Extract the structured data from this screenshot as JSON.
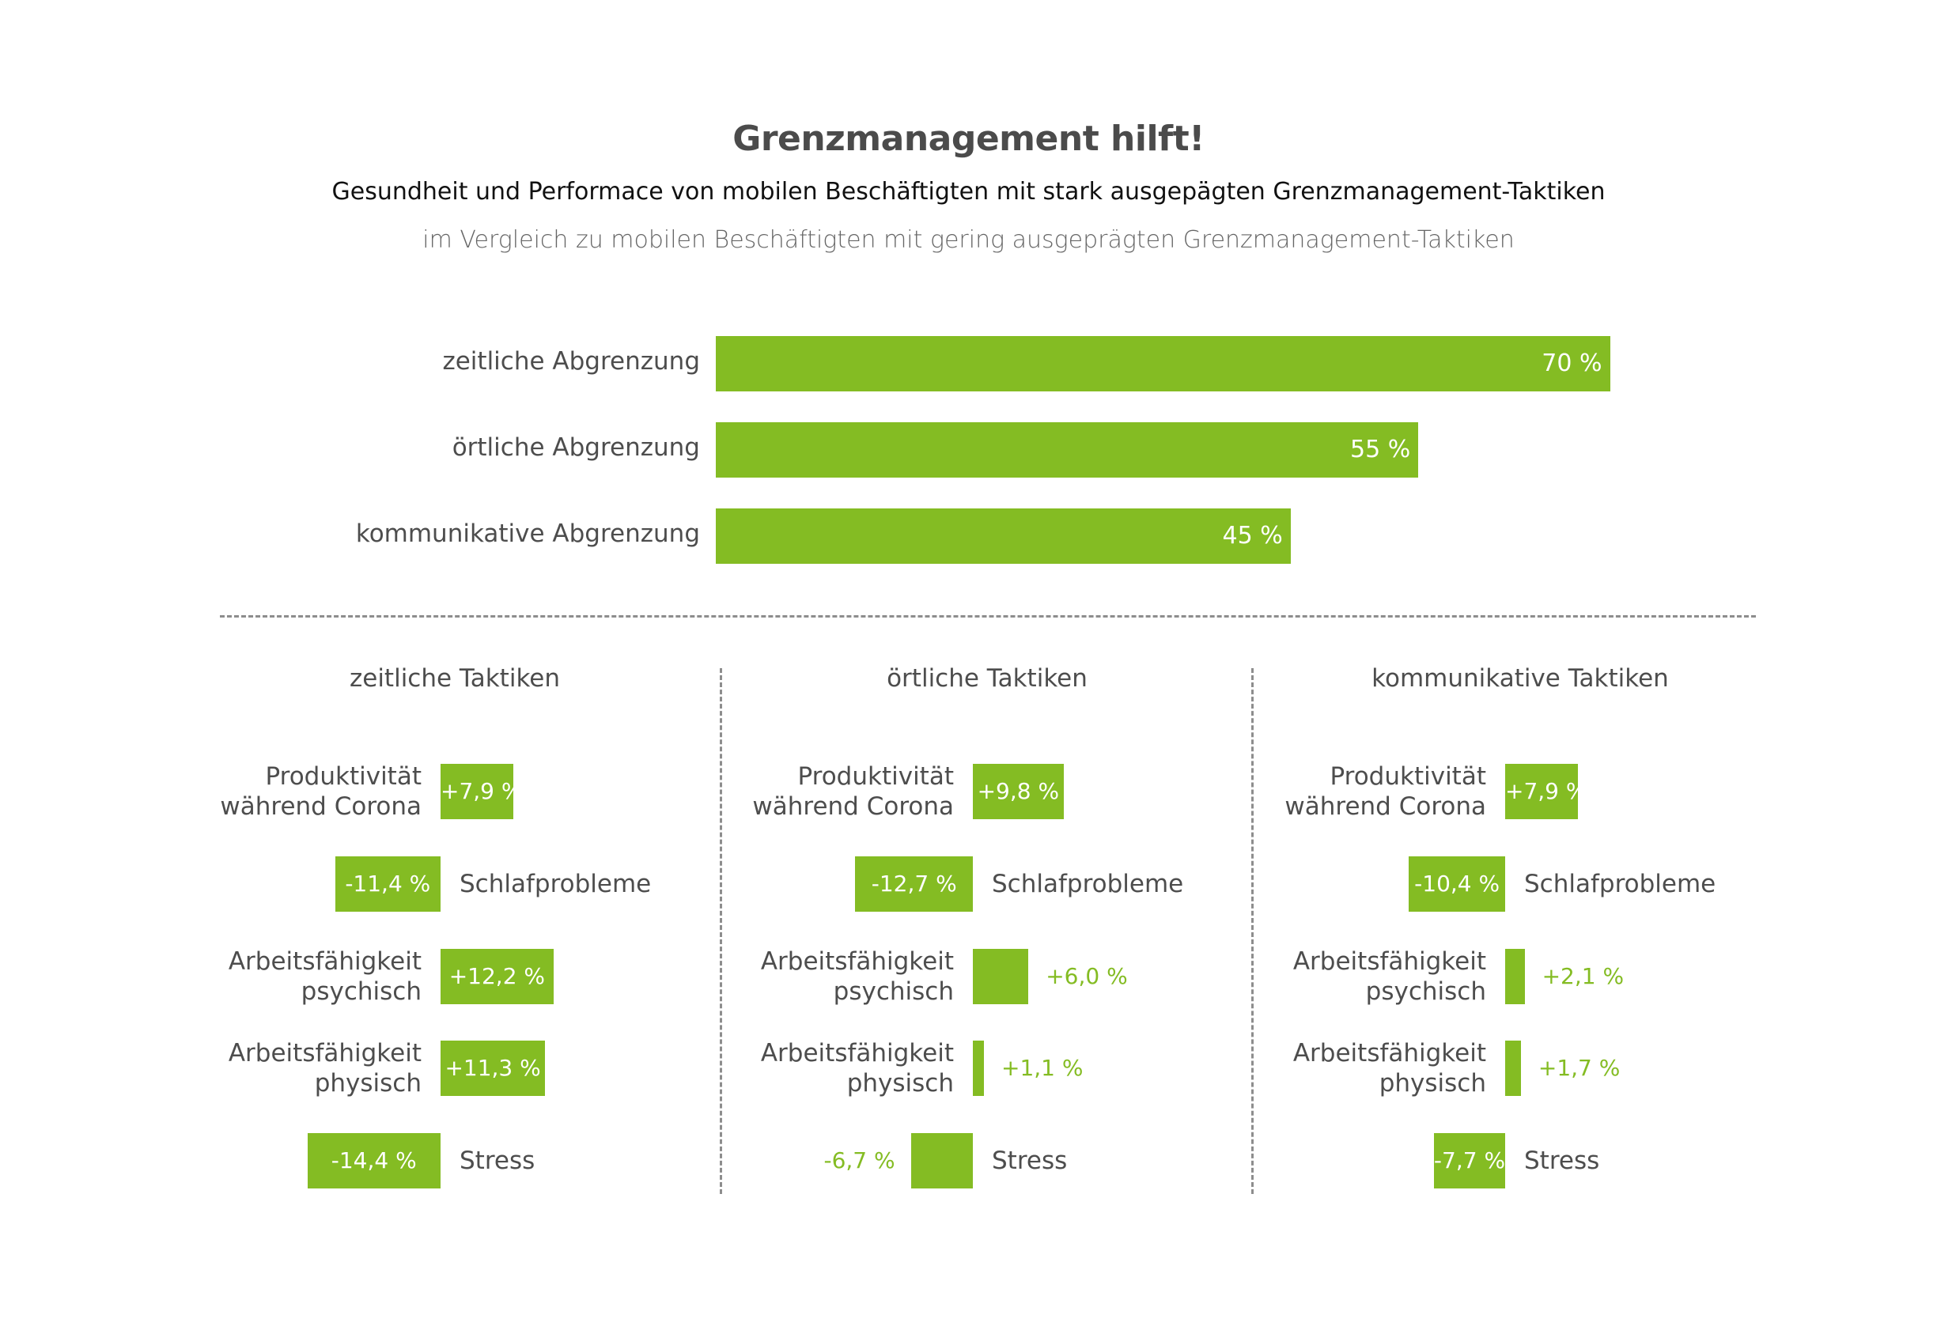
{
  "title": "Grenzmanagement hilft!",
  "subtitle": "Gesundheit und Performace von mobilen Beschäftigten mit stark ausgepägten Grenzmanagement-Taktiken",
  "note": "im Vergleich zu mobilen Beschäftigten mit gering ausgeprägten Grenzmanagement-Taktiken",
  "colors": {
    "bar": "#84bc23",
    "text": "#4d4d4d",
    "divider": "#8d8d8d"
  },
  "chart_data": [
    {
      "type": "bar",
      "orientation": "horizontal",
      "categories": [
        "zeitliche Abgrenzung",
        "örtliche Abgrenzung",
        "kommunikative Abgrenzung"
      ],
      "values": [
        70,
        55,
        45
      ],
      "value_labels": [
        "70 %",
        "55 %",
        "45 %"
      ]
    },
    {
      "type": "bar",
      "title": "zeitliche Taktiken",
      "categories": [
        "Produktivität während Corona",
        "Schlafprobleme",
        "Arbeitsfähigkeit psychisch",
        "Arbeitsfähigkeit physisch",
        "Stress"
      ],
      "category_lines": [
        [
          "Produktivität",
          "während Corona"
        ],
        [
          "Schlafprobleme"
        ],
        [
          "Arbeitsfähigkeit",
          "psychisch"
        ],
        [
          "Arbeitsfähigkeit",
          "physisch"
        ],
        [
          "Stress"
        ]
      ],
      "values": [
        7.9,
        -11.4,
        12.2,
        11.3,
        -14.4
      ],
      "value_labels": [
        "+7,9 %",
        "-11,4 %",
        "+12,2 %",
        "+11,3 %",
        "-14,4 %"
      ]
    },
    {
      "type": "bar",
      "title": "örtliche Taktiken",
      "categories": [
        "Produktivität während Corona",
        "Schlafprobleme",
        "Arbeitsfähigkeit psychisch",
        "Arbeitsfähigkeit physisch",
        "Stress"
      ],
      "category_lines": [
        [
          "Produktivität",
          "während Corona"
        ],
        [
          "Schlafprobleme"
        ],
        [
          "Arbeitsfähigkeit",
          "psychisch"
        ],
        [
          "Arbeitsfähigkeit",
          "physisch"
        ],
        [
          "Stress"
        ]
      ],
      "values": [
        9.8,
        -12.7,
        6.0,
        1.1,
        -6.7
      ],
      "value_labels": [
        "+9,8 %",
        "-12,7 %",
        "+6,0 %",
        "+1,1 %",
        "-6,7 %"
      ]
    },
    {
      "type": "bar",
      "title": "kommunikative Taktiken",
      "categories": [
        "Produktivität während Corona",
        "Schlafprobleme",
        "Arbeitsfähigkeit psychisch",
        "Arbeitsfähigkeit physisch",
        "Stress"
      ],
      "category_lines": [
        [
          "Produktivität",
          "während Corona"
        ],
        [
          "Schlafprobleme"
        ],
        [
          "Arbeitsfähigkeit",
          "psychisch"
        ],
        [
          "Arbeitsfähigkeit",
          "physisch"
        ],
        [
          "Stress"
        ]
      ],
      "values": [
        7.9,
        -10.4,
        2.1,
        1.7,
        -7.7
      ],
      "value_labels": [
        "+7,9 %",
        "-10,4 %",
        "+2,1 %",
        "+1,7 %",
        "-7,7 %"
      ]
    }
  ]
}
